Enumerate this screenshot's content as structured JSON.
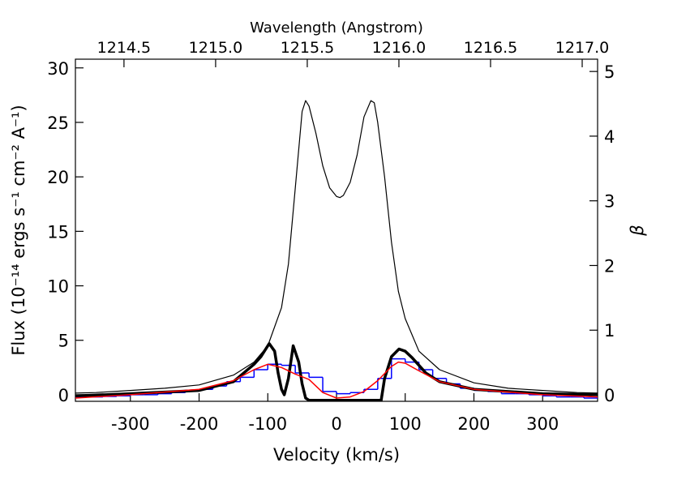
{
  "chart_data": {
    "type": "line",
    "xlabel": "Velocity (km/s)",
    "x2label": "Wavelength (Angstrom)",
    "ylabel": "Flux (10⁻¹⁴ ergs s⁻¹ cm⁻² A⁻¹)",
    "y2label": "β",
    "xlim": [
      -380,
      380
    ],
    "xticks": [
      -300,
      -200,
      -100,
      0,
      100,
      200,
      300
    ],
    "x2lim": [
      1214.235,
      1217.084
    ],
    "x2ticks": [
      1214.5,
      {
        "value": 1215.0,
        "label": "1215.0"
      },
      1215.5,
      {
        "value": 1216.0,
        "label": "1216.0"
      },
      1216.5,
      {
        "value": 1217.0,
        "label": "1217.0"
      }
    ],
    "ylim": [
      -0.6,
      30.8
    ],
    "yticks": [
      0,
      5,
      10,
      15,
      20,
      25,
      30
    ],
    "y2lim": [
      -0.1,
      5.19
    ],
    "y2ticks": [
      0,
      1,
      2,
      3,
      4,
      5
    ],
    "series": [
      {
        "color": "#000000",
        "width": 1.2,
        "x": [
          -380,
          -350,
          -300,
          -250,
          -200,
          -150,
          -120,
          -100,
          -80,
          -70,
          -60,
          -50,
          -45,
          -40,
          -30,
          -20,
          -10,
          0,
          5,
          10,
          20,
          30,
          40,
          50,
          55,
          60,
          70,
          80,
          90,
          100,
          120,
          150,
          200,
          250,
          300,
          350,
          380
        ],
        "values": [
          0.15,
          0.2,
          0.4,
          0.6,
          0.9,
          1.8,
          3,
          4.5,
          8,
          12,
          19,
          26,
          27,
          26.5,
          24,
          21,
          19,
          18.2,
          18.1,
          18.3,
          19.5,
          22,
          25.5,
          27,
          26.8,
          25,
          20,
          14,
          9.5,
          7,
          4,
          2.3,
          1.1,
          0.6,
          0.4,
          0.2,
          0.15
        ]
      },
      {
        "color": "#000000",
        "width": 3.5,
        "x": [
          -380,
          -300,
          -200,
          -150,
          -120,
          -110,
          -98,
          -90,
          -85,
          -80,
          -76,
          -70,
          -63,
          -55,
          -50,
          -45,
          -40,
          65,
          70,
          80,
          91,
          100,
          110,
          130,
          150,
          200,
          300,
          380
        ],
        "values": [
          -0.1,
          0.1,
          0.4,
          1.2,
          2.8,
          3.5,
          4.7,
          4.0,
          2,
          0.5,
          0,
          1.5,
          4.5,
          3,
          1,
          -0.3,
          -0.5,
          -0.5,
          1.5,
          3.5,
          4.2,
          4.0,
          3.4,
          2,
          1.2,
          0.5,
          0.1,
          0
        ]
      },
      {
        "color": "#ff0000",
        "width": 1.5,
        "x": [
          -380,
          -300,
          -200,
          -150,
          -120,
          -100,
          -80,
          -60,
          -40,
          -20,
          0,
          20,
          40,
          60,
          80,
          90,
          100,
          120,
          150,
          200,
          300,
          380
        ],
        "values": [
          -0.3,
          0,
          0.5,
          1.3,
          2.3,
          2.8,
          2.5,
          1.9,
          1.4,
          0.2,
          -0.3,
          -0.2,
          0.3,
          1.3,
          2.6,
          3.0,
          2.9,
          2.2,
          1.2,
          0.5,
          0.0,
          -0.2
        ]
      }
    ],
    "histogram": {
      "color": "#0000ff",
      "bins": [
        -380,
        -360,
        -340,
        -320,
        -300,
        -280,
        -260,
        -240,
        -220,
        -200,
        -180,
        -160,
        -140,
        -120,
        -100,
        -80,
        -60,
        -40,
        -20,
        0,
        20,
        40,
        60,
        80,
        100,
        120,
        140,
        160,
        180,
        200,
        220,
        240,
        260,
        280,
        300,
        320,
        340,
        360,
        380
      ],
      "values": [
        -0.2,
        -0.2,
        -0.15,
        -0.1,
        0,
        0,
        0.1,
        0.2,
        0.4,
        0.5,
        0.8,
        1.2,
        1.6,
        2.3,
        2.8,
        2.7,
        2.0,
        1.6,
        0.3,
        0.1,
        0.2,
        0.5,
        1.5,
        3.3,
        3.0,
        2.3,
        1.5,
        1.0,
        0.6,
        0.4,
        0.3,
        0.1,
        0.1,
        0.0,
        -0.1,
        -0.2,
        -0.2,
        -0.3
      ]
    }
  }
}
